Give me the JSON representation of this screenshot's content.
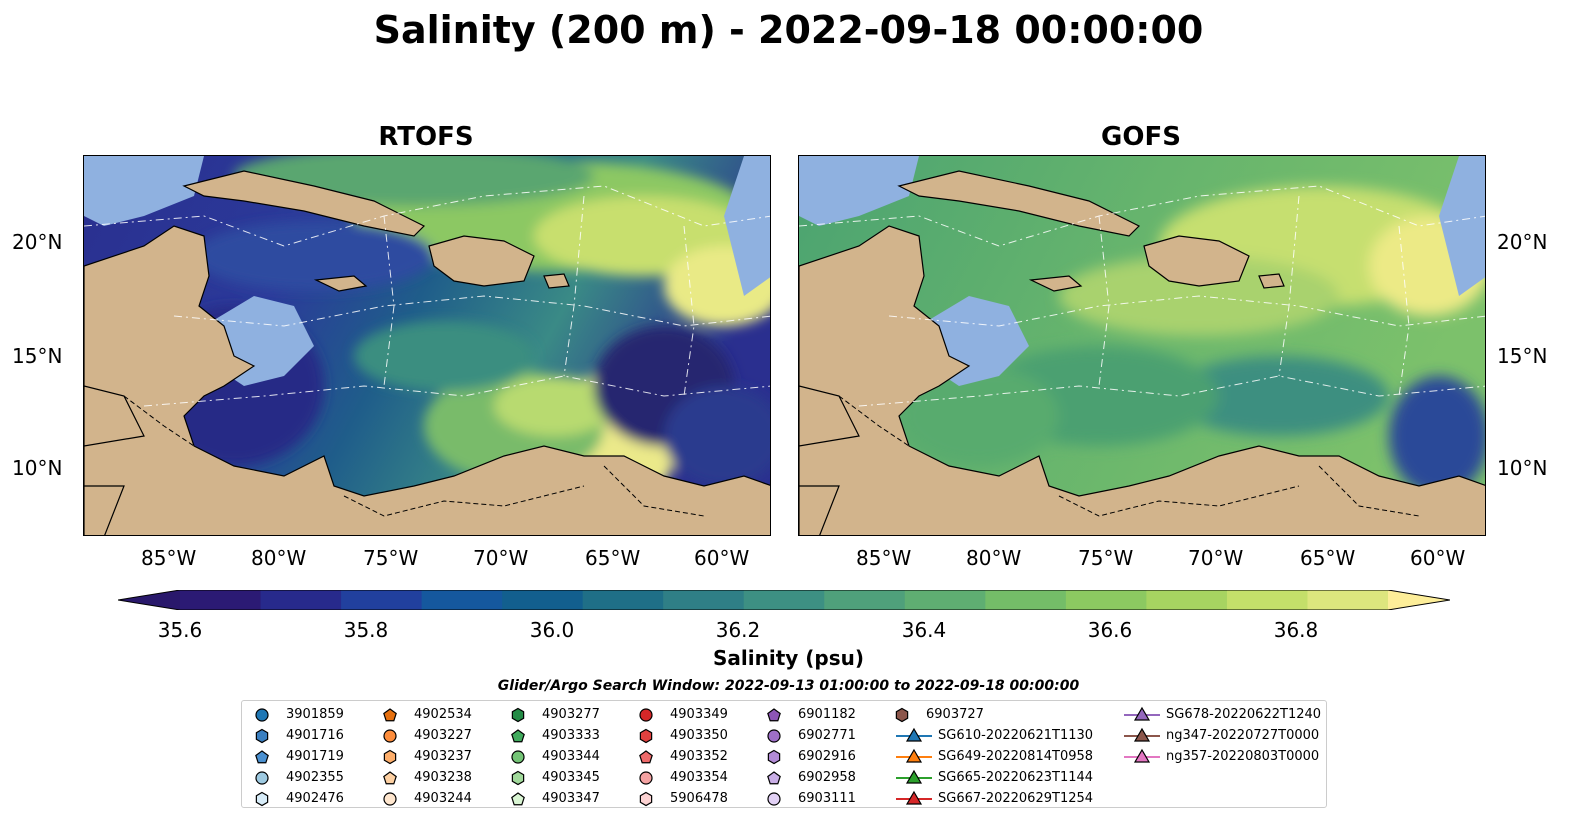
{
  "figure": {
    "title": "Salinity (200 m) - 2022-09-18 00:00:00",
    "panels": [
      "RTOFS",
      "GOFS"
    ],
    "lon_labels": [
      "85°W",
      "80°W",
      "75°W",
      "70°W",
      "65°W",
      "60°W"
    ],
    "lat_labels": [
      "20°N",
      "15°N",
      "10°N"
    ],
    "colorbar": {
      "label": "Salinity (psu)",
      "ticks": [
        "35.6",
        "35.8",
        "36.0",
        "36.2",
        "36.4",
        "36.6",
        "36.8"
      ],
      "range": [
        35.5,
        36.9
      ],
      "extend": "both",
      "colormap": "haline"
    },
    "legend_title": "Glider/Argo Search Window: 2022-09-13 01:00:00 to 2022-09-18 00:00:00",
    "land_color": "#d2b48c",
    "shelf_color": "#8fb1e0"
  },
  "legend": [
    {
      "label": "3901859",
      "marker": "circle",
      "color": "#1f77b4"
    },
    {
      "label": "4901716",
      "marker": "hexagon",
      "color": "#3a7fc0"
    },
    {
      "label": "4901719",
      "marker": "pentagon",
      "color": "#4a90d0"
    },
    {
      "label": "4902355",
      "marker": "circle",
      "color": "#9ecae1"
    },
    {
      "label": "4902476",
      "marker": "hexagon",
      "color": "#d7ecf8"
    },
    {
      "label": "4902534",
      "marker": "pentagon",
      "color": "#e6700f"
    },
    {
      "label": "4903227",
      "marker": "circle",
      "color": "#fd8d3c"
    },
    {
      "label": "4903237",
      "marker": "hexagon",
      "color": "#fdae6b"
    },
    {
      "label": "4903238",
      "marker": "pentagon",
      "color": "#fdd0a2"
    },
    {
      "label": "4903244",
      "marker": "circle",
      "color": "#fee6ce"
    },
    {
      "label": "4903277",
      "marker": "hexagon",
      "color": "#238b45"
    },
    {
      "label": "4903333",
      "marker": "pentagon",
      "color": "#41ab5d"
    },
    {
      "label": "4903344",
      "marker": "circle",
      "color": "#74c476"
    },
    {
      "label": "4903345",
      "marker": "hexagon",
      "color": "#a1d99b"
    },
    {
      "label": "4903347",
      "marker": "pentagon",
      "color": "#d9f5d3"
    },
    {
      "label": "4903349",
      "marker": "circle",
      "color": "#d62728"
    },
    {
      "label": "4903350",
      "marker": "hexagon",
      "color": "#e0413f"
    },
    {
      "label": "4903352",
      "marker": "pentagon",
      "color": "#ee6a6a"
    },
    {
      "label": "4903354",
      "marker": "circle",
      "color": "#f4a2a2"
    },
    {
      "label": "5906478",
      "marker": "hexagon",
      "color": "#fcd2d2"
    },
    {
      "label": "6901182",
      "marker": "pentagon",
      "color": "#8c55b5"
    },
    {
      "label": "6902771",
      "marker": "circle",
      "color": "#9e6fc8"
    },
    {
      "label": "6902916",
      "marker": "hexagon",
      "color": "#b28bd6"
    },
    {
      "label": "6902958",
      "marker": "pentagon",
      "color": "#c9aee6"
    },
    {
      "label": "6903111",
      "marker": "circle",
      "color": "#e2d1f5"
    },
    {
      "label": "6903727",
      "marker": "hexagon",
      "color": "#8c564b"
    },
    {
      "label": "SG610-20220621T1130",
      "marker": "triangle-line",
      "color": "#1f77b4"
    },
    {
      "label": "SG649-20220814T0958",
      "marker": "triangle-line",
      "color": "#ff7f0e"
    },
    {
      "label": "SG665-20220623T1144",
      "marker": "triangle-line",
      "color": "#2ca02c"
    },
    {
      "label": "SG667-20220629T1254",
      "marker": "triangle-line",
      "color": "#d62728"
    },
    {
      "label": "SG678-20220622T1240",
      "marker": "triangle-line",
      "color": "#9467bd"
    },
    {
      "label": "ng347-20220727T0000",
      "marker": "triangle-line",
      "color": "#8c564b"
    },
    {
      "label": "ng357-20220803T0000",
      "marker": "triangle-line",
      "color": "#e377c2"
    }
  ]
}
